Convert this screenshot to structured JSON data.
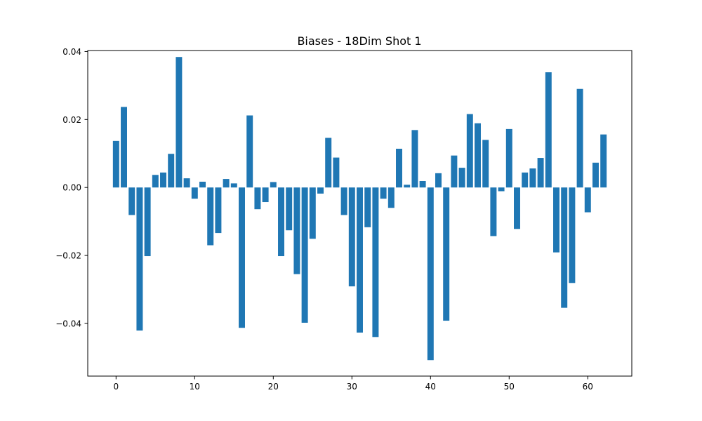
{
  "chart_data": {
    "type": "bar",
    "title": "Biases - 18Dim Shot 1",
    "xlabel": "",
    "ylabel": "",
    "bar_color": "#1f77b4",
    "xlim": [
      -3.6,
      65.6
    ],
    "ylim": [
      -0.0555,
      0.0403
    ],
    "xticks": [
      0,
      10,
      20,
      30,
      40,
      50,
      60
    ],
    "xtick_labels": [
      "0",
      "10",
      "20",
      "30",
      "40",
      "50",
      "60"
    ],
    "yticks": [
      0.04,
      0.02,
      0.0,
      -0.02,
      -0.04
    ],
    "ytick_labels": [
      "0.04",
      "0.02",
      "0.00",
      "−0.02",
      "−0.04"
    ],
    "grid": false,
    "x": [
      0,
      1,
      2,
      3,
      4,
      5,
      6,
      7,
      8,
      9,
      10,
      11,
      12,
      13,
      14,
      15,
      16,
      17,
      18,
      19,
      20,
      21,
      22,
      23,
      24,
      25,
      26,
      27,
      28,
      29,
      30,
      31,
      32,
      33,
      34,
      35,
      36,
      37,
      38,
      39,
      40,
      41,
      42,
      43,
      44,
      45,
      46,
      47,
      48,
      49,
      50,
      51,
      52,
      53,
      54,
      55,
      56,
      57,
      58,
      59,
      60,
      61,
      62
    ],
    "values": [
      0.0137,
      0.0237,
      -0.0081,
      -0.0421,
      -0.0202,
      0.0037,
      0.0044,
      0.0099,
      0.0384,
      0.0027,
      -0.0033,
      0.0017,
      -0.017,
      -0.0134,
      0.0025,
      0.0012,
      -0.0413,
      0.0212,
      -0.0064,
      -0.0043,
      0.0016,
      -0.0202,
      -0.0126,
      -0.0255,
      -0.0398,
      -0.0151,
      -0.0018,
      0.0146,
      0.0088,
      -0.0081,
      -0.0291,
      -0.0427,
      -0.0117,
      -0.044,
      -0.0033,
      -0.006,
      0.0114,
      0.0008,
      0.0169,
      0.0019,
      -0.0508,
      0.0042,
      -0.0392,
      0.0094,
      0.0058,
      0.0216,
      0.0189,
      0.014,
      -0.0143,
      -0.0011,
      0.0172,
      -0.0122,
      0.0044,
      0.0056,
      0.0087,
      0.0339,
      -0.0191,
      -0.0354,
      -0.0281,
      0.029,
      -0.0073,
      0.0073,
      0.0156
    ]
  }
}
